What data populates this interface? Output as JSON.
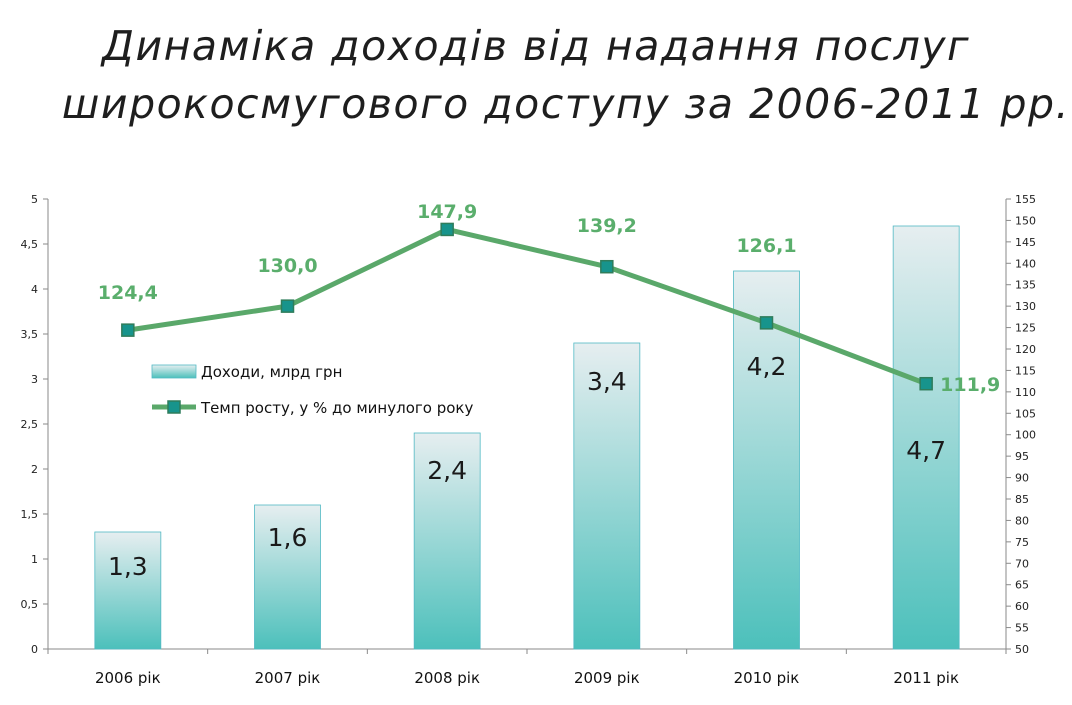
{
  "title": {
    "line1": "Динаміка доходів від надання послуг",
    "line2": "широкосмугового доступу за 2006-2011 рр."
  },
  "colors": {
    "bar_top": "#e6eef0",
    "bar_bottom": "#4cc0bb",
    "bar_border": "#52b9c4",
    "line": "#5aa86a",
    "marker_fill": "#17948c",
    "marker_border": "#2f7d5b",
    "line_label": "#5aae6c"
  },
  "legend": {
    "bars": "Доходи, млрд грн",
    "line": "Темп росту, у % до минулого року"
  },
  "chart_data": {
    "type": "bar",
    "categories": [
      "2006 рік",
      "2007 рік",
      "2008 рік",
      "2009 рік",
      "2010 рік",
      "2011 рік"
    ],
    "series": [
      {
        "name": "Доходи, млрд грн",
        "type": "bar",
        "axis": "left",
        "values": [
          1.3,
          1.6,
          2.4,
          3.4,
          4.2,
          4.7
        ],
        "labels": [
          "1,3",
          "1,6",
          "2,4",
          "3,4",
          "4,2",
          "4,7"
        ]
      },
      {
        "name": "Темп росту, у % до минулого року",
        "type": "line",
        "axis": "right",
        "values": [
          124.4,
          130.0,
          147.9,
          139.2,
          126.1,
          111.9
        ],
        "labels": [
          "124,4",
          "130,0",
          "147,9",
          "139,2",
          "126,1",
          "111,9"
        ]
      }
    ],
    "y_left": {
      "lim": [
        0,
        5
      ],
      "ticks": [
        "0",
        "0,5",
        "1",
        "1,5",
        "2",
        "2,5",
        "3",
        "3,5",
        "4",
        "4,5",
        "5"
      ]
    },
    "y_right": {
      "lim": [
        50,
        155
      ],
      "ticks": [
        "50",
        "55",
        "60",
        "65",
        "70",
        "75",
        "80",
        "85",
        "90",
        "95",
        "100",
        "105",
        "110",
        "115",
        "120",
        "125",
        "130",
        "135",
        "140",
        "145",
        "150",
        "155"
      ]
    },
    "grid": false,
    "legend_position": "center-left"
  }
}
